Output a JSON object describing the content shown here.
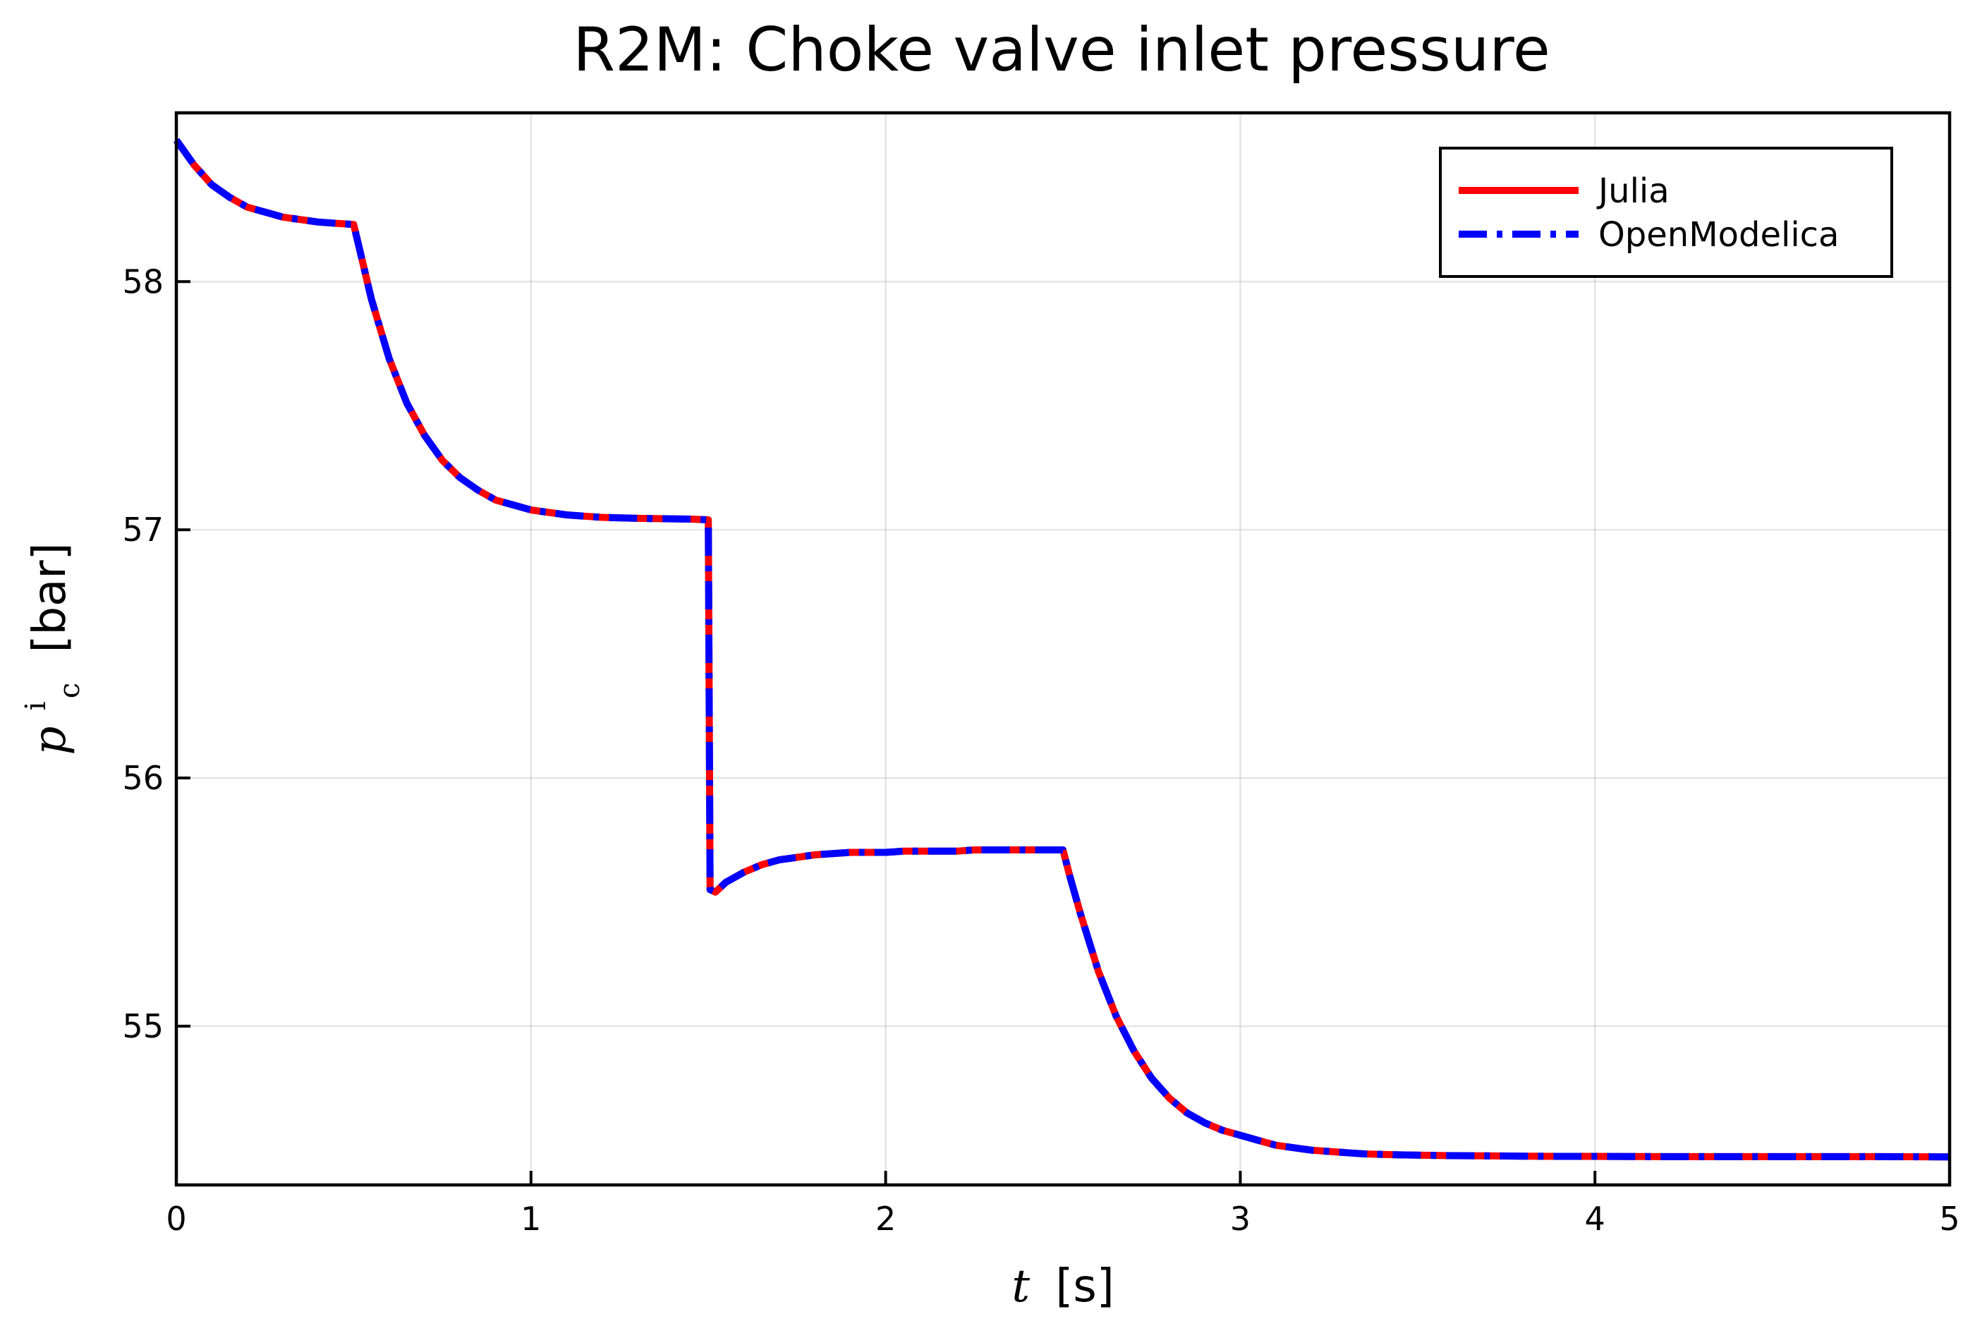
{
  "chart_data": {
    "type": "line",
    "title": "R2M: Choke valve inlet pressure",
    "xlabel": {
      "var": "t",
      "unit": "[s]"
    },
    "ylabel": {
      "var": "p",
      "sup": "i",
      "sub": "c",
      "unit": "[bar]"
    },
    "xlim": [
      0,
      5
    ],
    "ylim": [
      54.36,
      58.68
    ],
    "xticks": [
      0,
      1,
      2,
      3,
      4,
      5
    ],
    "yticks": [
      55,
      56,
      57,
      58
    ],
    "grid": true,
    "legend_position": "top-right",
    "series": [
      {
        "name": "Julia",
        "color": "#ff0000",
        "style": "solid",
        "x": [
          0,
          0.05,
          0.1,
          0.15,
          0.2,
          0.25,
          0.3,
          0.35,
          0.4,
          0.45,
          0.5,
          0.52,
          0.55,
          0.6,
          0.65,
          0.7,
          0.75,
          0.8,
          0.85,
          0.9,
          0.95,
          1.0,
          1.05,
          1.1,
          1.15,
          1.2,
          1.25,
          1.3,
          1.35,
          1.4,
          1.45,
          1.5,
          1.505,
          1.52,
          1.55,
          1.6,
          1.65,
          1.7,
          1.75,
          1.8,
          1.85,
          1.9,
          1.95,
          2.0,
          2.05,
          2.1,
          2.15,
          2.2,
          2.25,
          2.3,
          2.35,
          2.4,
          2.45,
          2.5,
          2.52,
          2.55,
          2.6,
          2.65,
          2.7,
          2.75,
          2.8,
          2.85,
          2.9,
          2.95,
          3.0,
          3.05,
          3.1,
          3.15,
          3.2,
          3.25,
          3.3,
          3.35,
          3.4,
          3.45,
          3.5,
          3.6,
          3.7,
          3.8,
          3.9,
          4.0,
          4.2,
          4.4,
          4.6,
          4.8,
          5.0
        ],
        "values": [
          58.57,
          58.47,
          58.39,
          58.34,
          58.3,
          58.28,
          58.26,
          58.25,
          58.24,
          58.235,
          58.23,
          58.11,
          57.93,
          57.69,
          57.51,
          57.38,
          57.28,
          57.21,
          57.16,
          57.12,
          57.1,
          57.08,
          57.07,
          57.06,
          57.055,
          57.05,
          57.048,
          57.046,
          57.045,
          57.044,
          57.043,
          57.04,
          55.55,
          55.54,
          55.58,
          55.62,
          55.65,
          55.67,
          55.68,
          55.69,
          55.695,
          55.7,
          55.7,
          55.7,
          55.705,
          55.705,
          55.705,
          55.705,
          55.71,
          55.71,
          55.71,
          55.71,
          55.71,
          55.71,
          55.6,
          55.45,
          55.22,
          55.04,
          54.9,
          54.79,
          54.71,
          54.65,
          54.61,
          54.58,
          54.56,
          54.54,
          54.52,
          54.51,
          54.5,
          54.495,
          54.49,
          54.485,
          54.483,
          54.481,
          54.48,
          54.478,
          54.477,
          54.476,
          54.475,
          54.475,
          54.474,
          54.474,
          54.474,
          54.474,
          54.473
        ]
      },
      {
        "name": "OpenModelica",
        "color": "#0000ff",
        "style": "dashdot",
        "x": [
          0,
          0.05,
          0.1,
          0.15,
          0.2,
          0.25,
          0.3,
          0.35,
          0.4,
          0.45,
          0.5,
          0.52,
          0.55,
          0.6,
          0.65,
          0.7,
          0.75,
          0.8,
          0.85,
          0.9,
          0.95,
          1.0,
          1.05,
          1.1,
          1.15,
          1.2,
          1.25,
          1.3,
          1.35,
          1.4,
          1.45,
          1.5,
          1.505,
          1.52,
          1.55,
          1.6,
          1.65,
          1.7,
          1.75,
          1.8,
          1.85,
          1.9,
          1.95,
          2.0,
          2.05,
          2.1,
          2.15,
          2.2,
          2.25,
          2.3,
          2.35,
          2.4,
          2.45,
          2.5,
          2.52,
          2.55,
          2.6,
          2.65,
          2.7,
          2.75,
          2.8,
          2.85,
          2.9,
          2.95,
          3.0,
          3.05,
          3.1,
          3.15,
          3.2,
          3.25,
          3.3,
          3.35,
          3.4,
          3.45,
          3.5,
          3.6,
          3.7,
          3.8,
          3.9,
          4.0,
          4.2,
          4.4,
          4.6,
          4.8,
          5.0
        ],
        "values": [
          58.57,
          58.47,
          58.39,
          58.34,
          58.3,
          58.28,
          58.26,
          58.25,
          58.24,
          58.235,
          58.23,
          58.11,
          57.93,
          57.69,
          57.51,
          57.38,
          57.28,
          57.21,
          57.16,
          57.12,
          57.1,
          57.08,
          57.07,
          57.06,
          57.055,
          57.05,
          57.048,
          57.046,
          57.045,
          57.044,
          57.043,
          57.04,
          55.55,
          55.54,
          55.58,
          55.62,
          55.65,
          55.67,
          55.68,
          55.69,
          55.695,
          55.7,
          55.7,
          55.7,
          55.705,
          55.705,
          55.705,
          55.705,
          55.71,
          55.71,
          55.71,
          55.71,
          55.71,
          55.71,
          55.6,
          55.45,
          55.22,
          55.04,
          54.9,
          54.79,
          54.71,
          54.65,
          54.61,
          54.58,
          54.56,
          54.54,
          54.52,
          54.51,
          54.5,
          54.495,
          54.49,
          54.485,
          54.483,
          54.481,
          54.48,
          54.478,
          54.477,
          54.476,
          54.475,
          54.475,
          54.474,
          54.474,
          54.474,
          54.474,
          54.473
        ]
      }
    ]
  }
}
